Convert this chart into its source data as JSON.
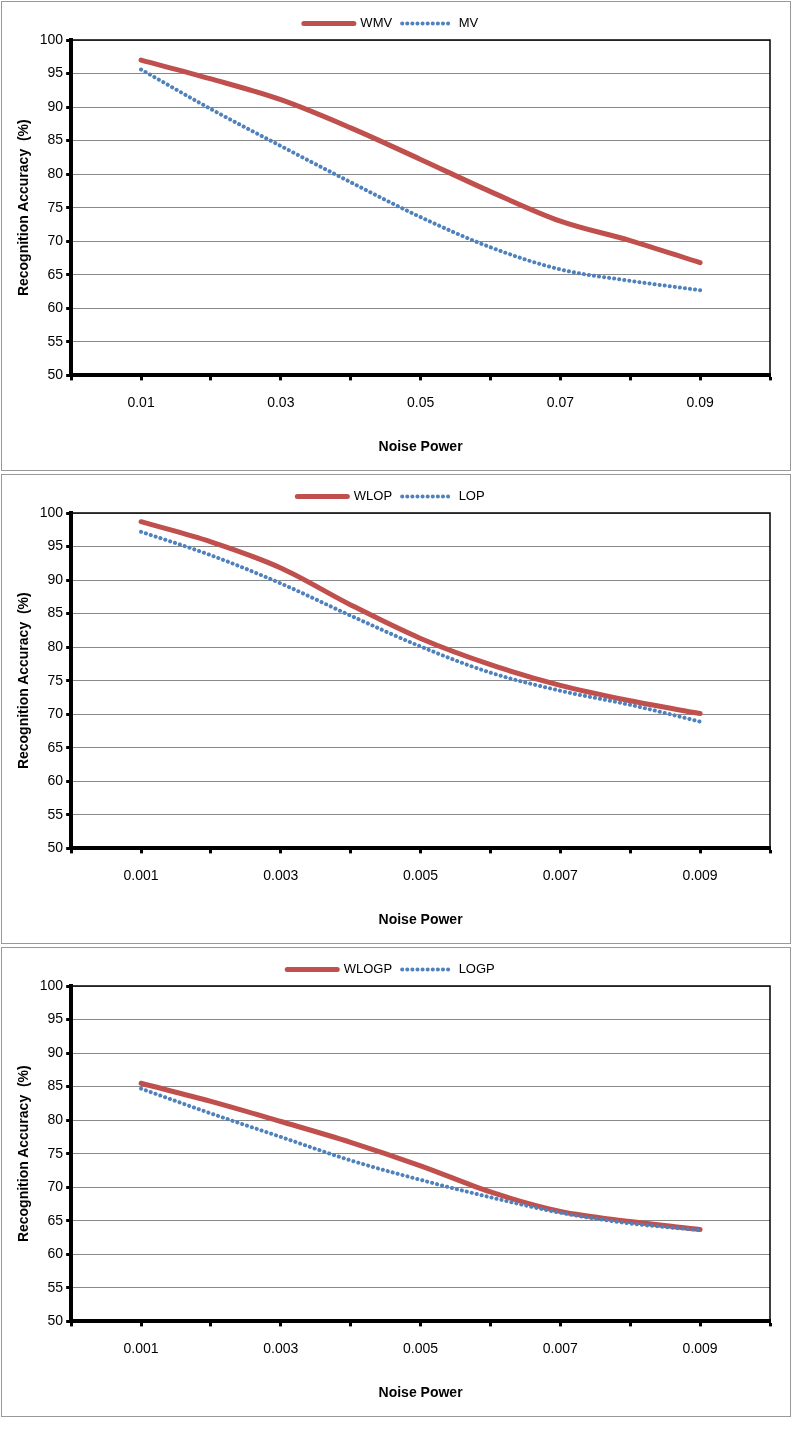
{
  "chart_data": [
    {
      "type": "line",
      "xlabel": "Noise Power",
      "ylabel": "Recognition Accuracy  (%)",
      "x": [
        0.01,
        0.02,
        0.03,
        0.04,
        0.05,
        0.06,
        0.07,
        0.08,
        0.09
      ],
      "series": [
        {
          "name": "WMV",
          "color": "#c0504d",
          "line_style": "solid",
          "values": [
            97.0,
            94.2,
            91.1,
            86.9,
            82.2,
            77.4,
            73.0,
            70.1,
            66.8
          ]
        },
        {
          "name": "MV",
          "color": "#4f81bd",
          "line_style": "dotted",
          "values": [
            95.6,
            89.7,
            84.2,
            78.8,
            73.6,
            69.1,
            65.8,
            64.1,
            62.7
          ]
        }
      ],
      "xlim": [
        0,
        0.1
      ],
      "xticks": [
        {
          "value": 0,
          "label": null
        },
        {
          "value": 0.01,
          "label": "0.01"
        },
        {
          "value": 0.02,
          "label": null
        },
        {
          "value": 0.03,
          "label": "0.03"
        },
        {
          "value": 0.04,
          "label": null
        },
        {
          "value": 0.05,
          "label": "0.05"
        },
        {
          "value": 0.06,
          "label": null
        },
        {
          "value": 0.07,
          "label": "0.07"
        },
        {
          "value": 0.08,
          "label": null
        },
        {
          "value": 0.09,
          "label": "0.09"
        },
        {
          "value": 0.1,
          "label": null
        }
      ],
      "ylim": [
        50,
        100
      ],
      "yticks": [
        50,
        55,
        60,
        65,
        70,
        75,
        80,
        85,
        90,
        95,
        100
      ],
      "grid": "y",
      "legend": "top",
      "marker": "none"
    },
    {
      "type": "line",
      "xlabel": "Noise Power",
      "ylabel": "Recognition Accuracy  (%)",
      "x": [
        0.001,
        0.002,
        0.003,
        0.004,
        0.005,
        0.006,
        0.007,
        0.008,
        0.009
      ],
      "series": [
        {
          "name": "WLOP",
          "color": "#c0504d",
          "line_style": "solid",
          "values": [
            98.7,
            95.7,
            91.8,
            86.3,
            81.3,
            77.4,
            74.3,
            72.0,
            70.1
          ]
        },
        {
          "name": "LOP",
          "color": "#4f81bd",
          "line_style": "dotted",
          "values": [
            97.2,
            93.7,
            89.5,
            84.7,
            80.1,
            76.2,
            73.5,
            71.4,
            68.9
          ]
        }
      ],
      "xlim": [
        0,
        0.01
      ],
      "xticks": [
        {
          "value": 0,
          "label": null
        },
        {
          "value": 0.001,
          "label": "0.001"
        },
        {
          "value": 0.002,
          "label": null
        },
        {
          "value": 0.003,
          "label": "0.003"
        },
        {
          "value": 0.004,
          "label": null
        },
        {
          "value": 0.005,
          "label": "0.005"
        },
        {
          "value": 0.006,
          "label": null
        },
        {
          "value": 0.007,
          "label": "0.007"
        },
        {
          "value": 0.008,
          "label": null
        },
        {
          "value": 0.009,
          "label": "0.009"
        },
        {
          "value": 0.01,
          "label": null
        }
      ],
      "ylim": [
        50,
        100
      ],
      "yticks": [
        50,
        55,
        60,
        65,
        70,
        75,
        80,
        85,
        90,
        95,
        100
      ],
      "grid": "y",
      "legend": "top",
      "marker": "none"
    },
    {
      "type": "line",
      "xlabel": "Noise Power",
      "ylabel": "Recognition Accuracy  (%)",
      "x": [
        0.001,
        0.002,
        0.003,
        0.004,
        0.005,
        0.006,
        0.007,
        0.008,
        0.009
      ],
      "series": [
        {
          "name": "WLOGP",
          "color": "#c0504d",
          "line_style": "solid",
          "values": [
            85.5,
            82.8,
            79.8,
            76.7,
            73.2,
            69.3,
            66.4,
            64.9,
            63.7
          ]
        },
        {
          "name": "LOGP",
          "color": "#4f81bd",
          "line_style": "dotted",
          "values": [
            84.7,
            81.0,
            77.5,
            74.0,
            71.1,
            68.5,
            66.2,
            64.6,
            63.6
          ]
        }
      ],
      "xlim": [
        0,
        0.01
      ],
      "xticks": [
        {
          "value": 0,
          "label": null
        },
        {
          "value": 0.001,
          "label": "0.001"
        },
        {
          "value": 0.002,
          "label": null
        },
        {
          "value": 0.003,
          "label": "0.003"
        },
        {
          "value": 0.004,
          "label": null
        },
        {
          "value": 0.005,
          "label": "0.005"
        },
        {
          "value": 0.006,
          "label": null
        },
        {
          "value": 0.007,
          "label": "0.007"
        },
        {
          "value": 0.008,
          "label": null
        },
        {
          "value": 0.009,
          "label": "0.009"
        },
        {
          "value": 0.01,
          "label": null
        }
      ],
      "ylim": [
        50,
        100
      ],
      "yticks": [
        50,
        55,
        60,
        65,
        70,
        75,
        80,
        85,
        90,
        95,
        100
      ],
      "grid": "y",
      "legend": "top",
      "marker": "none"
    }
  ]
}
